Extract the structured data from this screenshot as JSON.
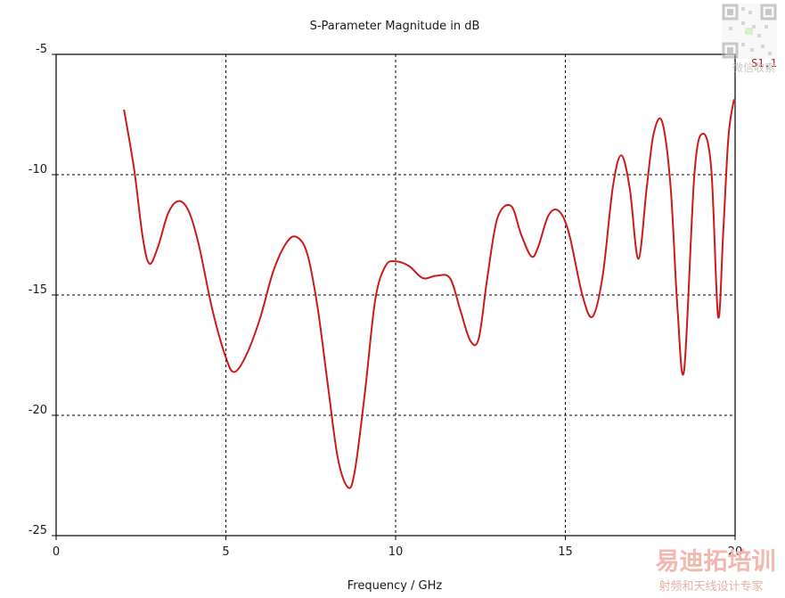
{
  "chart_data": {
    "type": "line",
    "title": "S-Parameter Magnitude in dB",
    "xlabel": "Frequency / GHz",
    "ylabel": "",
    "xlim": [
      0,
      20
    ],
    "ylim": [
      -25,
      -5
    ],
    "xticks": [
      0,
      5,
      10,
      15,
      20
    ],
    "yticks": [
      -5,
      -10,
      -15,
      -20,
      -25
    ],
    "grid": true,
    "legend": "top-right",
    "series": [
      {
        "name": "S1,1",
        "color": "#cc1a1a",
        "x": [
          2.0,
          2.3,
          2.55,
          2.75,
          3.0,
          3.3,
          3.6,
          3.9,
          4.2,
          4.6,
          5.0,
          5.25,
          5.6,
          6.0,
          6.4,
          6.8,
          7.1,
          7.4,
          7.7,
          8.0,
          8.3,
          8.6,
          8.8,
          9.1,
          9.4,
          9.7,
          10.0,
          10.4,
          10.8,
          11.2,
          11.6,
          11.9,
          12.2,
          12.45,
          12.7,
          13.0,
          13.4,
          13.7,
          14.0,
          14.2,
          14.5,
          14.8,
          15.1,
          15.5,
          15.8,
          16.1,
          16.4,
          16.65,
          16.9,
          17.15,
          17.4,
          17.6,
          17.85,
          18.1,
          18.3,
          18.5,
          18.8,
          19.05,
          19.3,
          19.5,
          19.65,
          19.8,
          19.95,
          20.0
        ],
        "y": [
          -7.3,
          -9.8,
          -12.6,
          -13.7,
          -13.0,
          -11.6,
          -11.1,
          -11.5,
          -12.9,
          -15.6,
          -17.6,
          -18.2,
          -17.5,
          -16.0,
          -14.0,
          -12.8,
          -12.6,
          -13.3,
          -15.5,
          -18.7,
          -21.8,
          -23.0,
          -22.3,
          -19.0,
          -15.2,
          -13.8,
          -13.6,
          -13.8,
          -14.3,
          -14.2,
          -14.3,
          -15.6,
          -16.9,
          -16.8,
          -14.3,
          -11.8,
          -11.3,
          -12.5,
          -13.4,
          -13.0,
          -11.7,
          -11.5,
          -12.4,
          -15.0,
          -15.9,
          -14.2,
          -10.5,
          -9.2,
          -10.6,
          -13.5,
          -10.5,
          -8.3,
          -7.8,
          -10.5,
          -15.5,
          -18.1,
          -10.0,
          -8.3,
          -9.8,
          -15.9,
          -12.4,
          -8.5,
          -7.0,
          -7.0
        ]
      }
    ]
  },
  "watermark": {
    "caption": "微信收索",
    "brand": "易迪拓培训",
    "subtitle": "射频和天线设计专家"
  }
}
